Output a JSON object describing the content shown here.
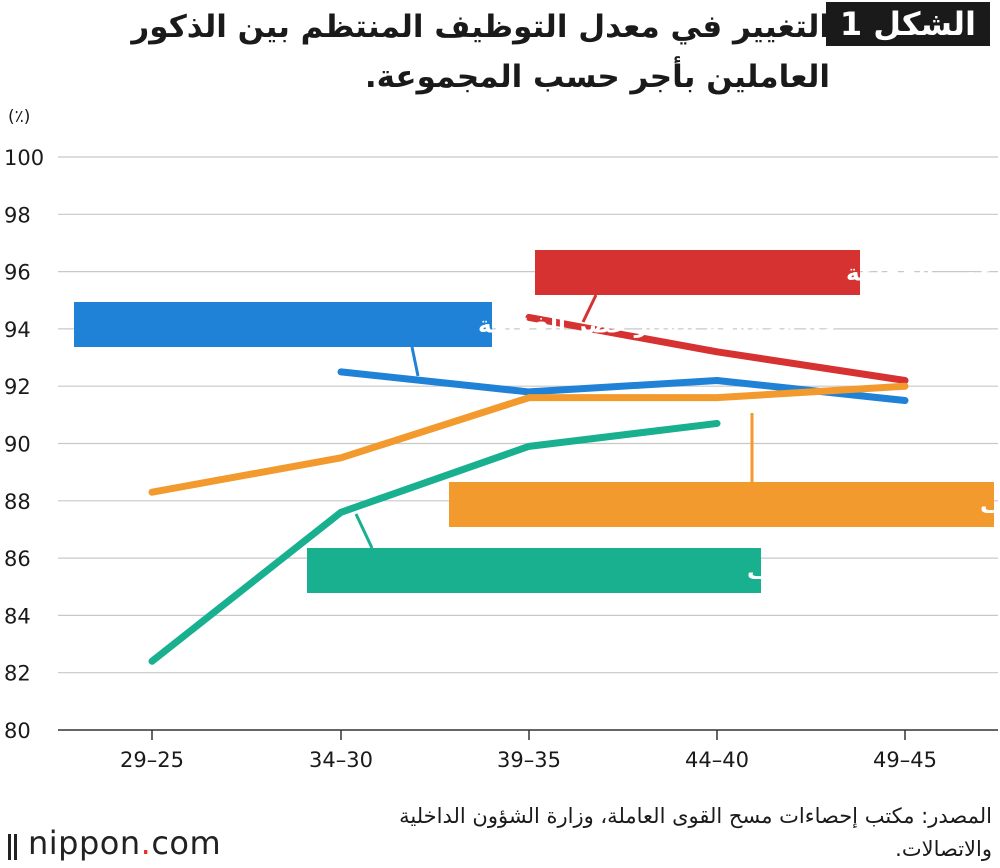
{
  "figure": {
    "badge": "الشكل 1",
    "title": "التغيير في معدل التوظيف المنتظم بين الذكور العاملين بأجر حسب المجموعة."
  },
  "chart_data": {
    "type": "line",
    "unit_label": "(٪)",
    "categories": [
      "29–25",
      "34–30",
      "39–35",
      "44–40",
      "49–45"
    ],
    "ylim": [
      80,
      100
    ],
    "yticks": [
      80,
      82,
      84,
      86,
      88,
      90,
      92,
      94,
      96,
      98,
      100
    ],
    "grid": "horizontal",
    "series": [
      {
        "name": "أ. مجموعة عصر الفقاعة",
        "color": "#d63232",
        "values": [
          null,
          null,
          94.4,
          93.2,
          92.2
        ]
      },
      {
        "name": "ب. مجموعة انهيار عصر الفقاعة",
        "color": "#1f82d6",
        "values": [
          null,
          92.5,
          91.8,
          92.2,
          91.5
        ]
      },
      {
        "name": "ج. مجموعة ما قبل العصر الجليدي للتوظيف",
        "color": "#f29a2e",
        "values": [
          88.3,
          89.5,
          91.6,
          91.6,
          92.0
        ]
      },
      {
        "name": "د. مجموعة العصر الجليدي للتوظيف",
        "color": "#18b08e",
        "values": [
          82.4,
          87.6,
          89.9,
          90.7,
          null
        ]
      }
    ]
  },
  "source": "المصدر: مكتب إحصاءات مسح القوى العاملة، وزارة الشؤون الداخلية والاتصالات.",
  "logo": {
    "name": "nippon",
    "dot": ".",
    "suffix": "com"
  }
}
